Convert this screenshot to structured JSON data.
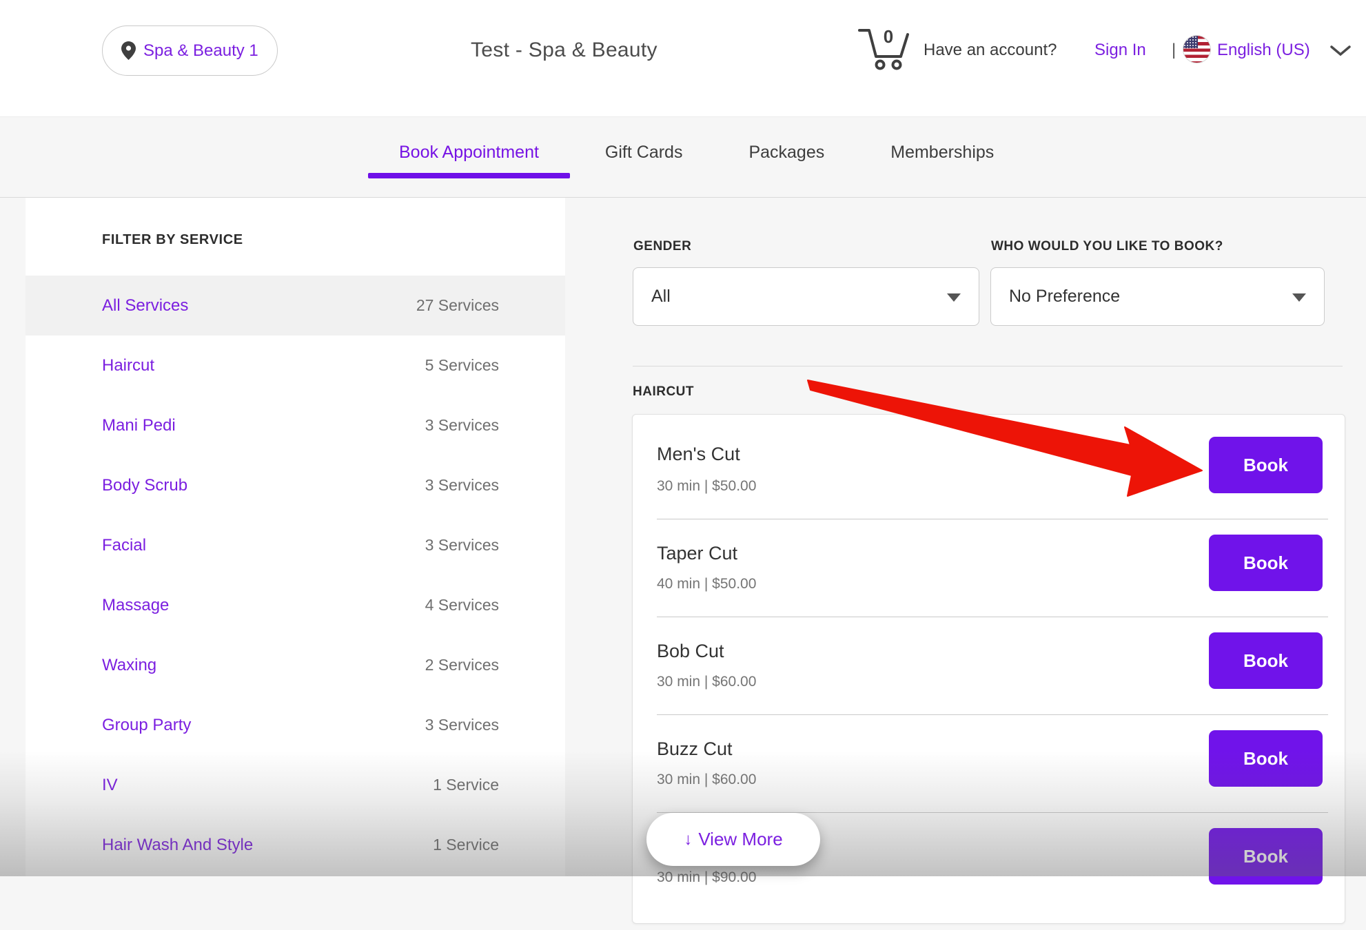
{
  "header": {
    "location_label": "Spa & Beauty 1",
    "title": "Test - Spa & Beauty",
    "cart_count": "0",
    "account_prompt": "Have an account?",
    "sign_in_label": "Sign In",
    "separator": "|",
    "language_label": "English (US)"
  },
  "tabs": [
    {
      "label": "Book Appointment",
      "active": true
    },
    {
      "label": "Gift Cards",
      "active": false
    },
    {
      "label": "Packages",
      "active": false
    },
    {
      "label": "Memberships",
      "active": false
    }
  ],
  "sidebar": {
    "heading": "FILTER BY SERVICE",
    "items": [
      {
        "label": "All Services",
        "count": "27 Services",
        "selected": true
      },
      {
        "label": "Haircut",
        "count": "5 Services",
        "selected": false
      },
      {
        "label": "Mani Pedi",
        "count": "3 Services",
        "selected": false
      },
      {
        "label": "Body Scrub",
        "count": "3 Services",
        "selected": false
      },
      {
        "label": "Facial",
        "count": "3 Services",
        "selected": false
      },
      {
        "label": "Massage",
        "count": "4 Services",
        "selected": false
      },
      {
        "label": "Waxing",
        "count": "2 Services",
        "selected": false
      },
      {
        "label": "Group Party",
        "count": "3 Services",
        "selected": false
      },
      {
        "label": "IV",
        "count": "1 Service",
        "selected": false
      },
      {
        "label": "Hair Wash And Style",
        "count": "1 Service",
        "selected": false
      }
    ]
  },
  "filters": {
    "gender": {
      "label": "GENDER",
      "value": "All"
    },
    "staff": {
      "label": "WHO WOULD YOU LIKE TO BOOK?",
      "value": "No Preference"
    }
  },
  "services_section": {
    "heading": "HAIRCUT",
    "book_label": "Book",
    "items": [
      {
        "name": "Men's Cut",
        "meta": "30 min | $50.00",
        "partial": false
      },
      {
        "name": "Taper Cut",
        "meta": "40 min | $50.00",
        "partial": false
      },
      {
        "name": "Bob Cut",
        "meta": "30 min | $60.00",
        "partial": false
      },
      {
        "name": "Buzz Cut",
        "meta": "30 min | $60.00",
        "partial": false
      },
      {
        "name": "",
        "meta": "30 min | $90.00",
        "partial": true
      }
    ],
    "view_more": {
      "arrow": "↓",
      "label": "View More"
    }
  },
  "colors": {
    "accent_link": "#7b1fe0",
    "accent_button": "#7013ea",
    "annotation_red": "#ed1407",
    "page_background": "#f6f6f6",
    "selected_row": "#f1f1f1"
  }
}
